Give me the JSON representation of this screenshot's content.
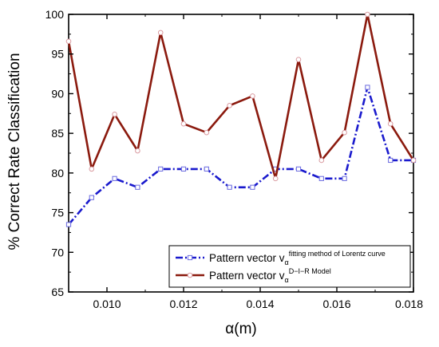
{
  "chart_data": {
    "type": "line",
    "xlabel": "α(m)",
    "ylabel": "% Correct Rate Classification",
    "xlim": [
      0.009,
      0.018
    ],
    "ylim": [
      65,
      100
    ],
    "xticks": [
      "0.010",
      "0.012",
      "0.014",
      "0.016",
      "0.018"
    ],
    "yticks": [
      "65",
      "70",
      "75",
      "80",
      "85",
      "90",
      "95",
      "100"
    ],
    "x": [
      0.009,
      0.0096,
      0.0102,
      0.0108,
      0.0114,
      0.012,
      0.0126,
      0.0132,
      0.0138,
      0.0144,
      0.015,
      0.0156,
      0.0162,
      0.0168,
      0.0174,
      0.018
    ],
    "series": [
      {
        "name_main": "Pattern vector v",
        "name_sub": "α",
        "name_sup": "fitting method of Lorentz curve",
        "color": "#1a1acd",
        "line_style": "dash-dot",
        "marker": "square",
        "values": [
          73.5,
          76.9,
          79.3,
          78.2,
          80.5,
          80.5,
          80.5,
          78.2,
          78.2,
          80.5,
          80.5,
          79.3,
          79.3,
          90.8,
          81.6,
          81.6
        ]
      },
      {
        "name_main": "Pattern vector v",
        "name_sub": "α",
        "name_sup": "D−I−R Model",
        "color": "#8b1a0e",
        "line_style": "solid",
        "marker": "circle",
        "values": [
          96.6,
          80.5,
          87.4,
          82.8,
          97.7,
          86.2,
          85.1,
          88.5,
          89.7,
          79.3,
          94.3,
          81.6,
          85.1,
          100,
          86.2,
          81.6
        ]
      }
    ],
    "legend_position": "bottom-right",
    "grid": false
  }
}
